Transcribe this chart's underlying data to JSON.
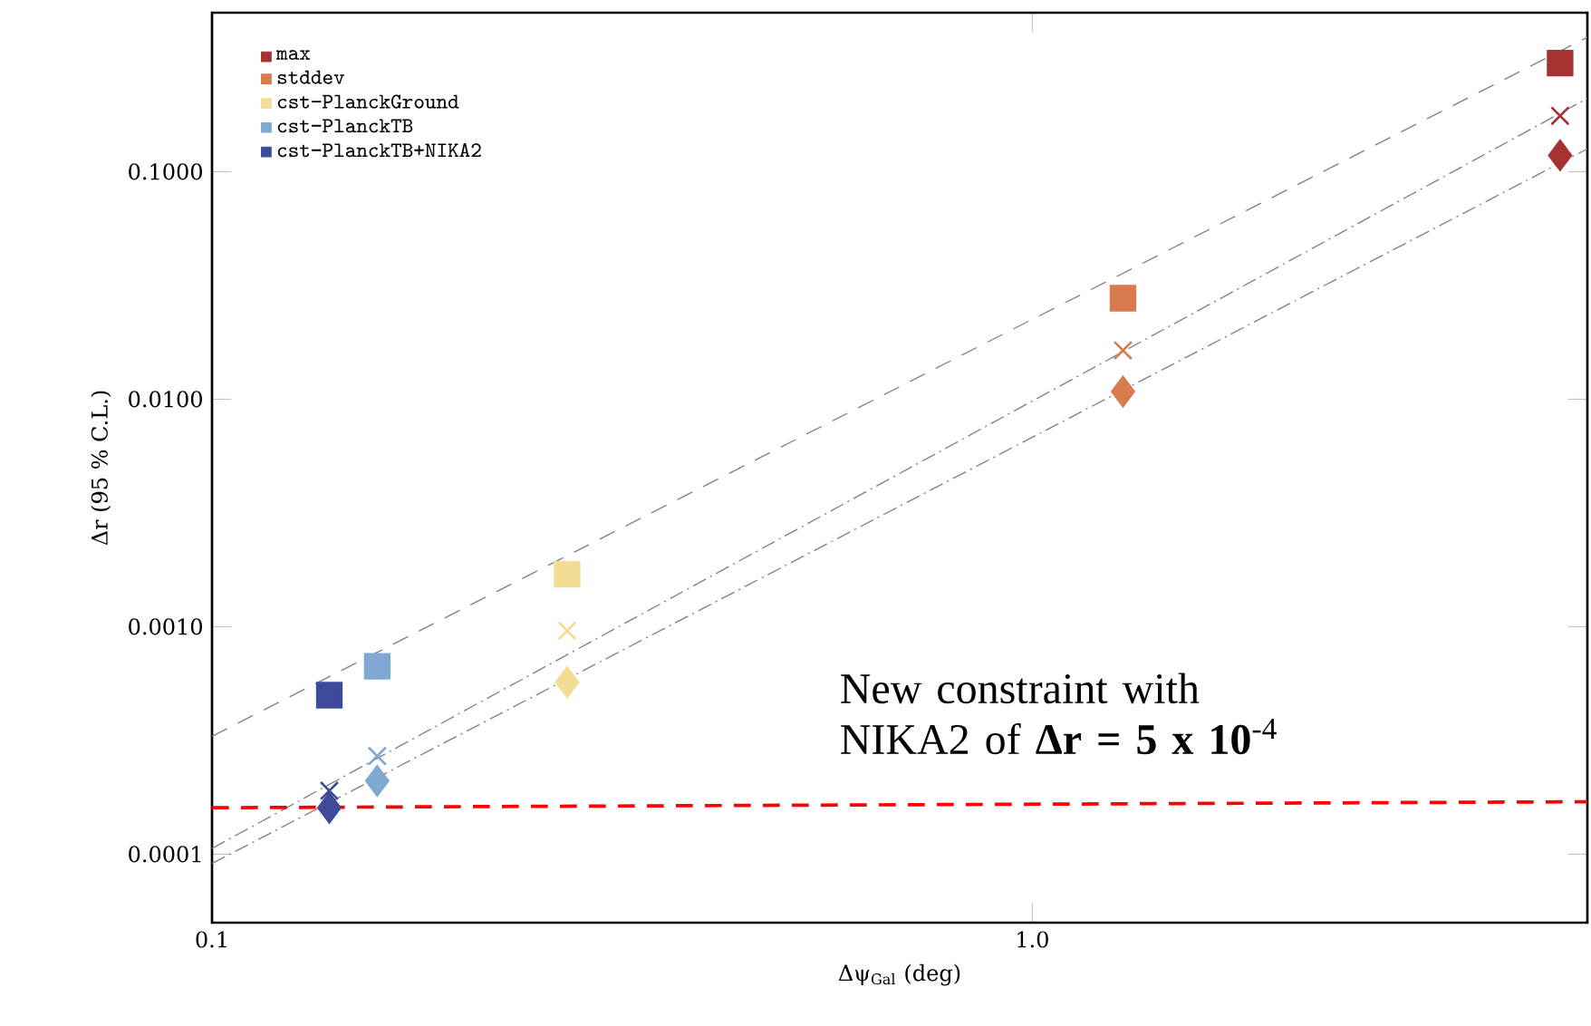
{
  "chart_data": {
    "type": "scatter",
    "xlabel": "Δψ$_{Gal}$ (deg)",
    "ylabel": "Δr (95 % C.L.)",
    "log": "xy",
    "xlim": [
      0.1,
      4.75
    ],
    "ylim": [
      5e-05,
      0.5
    ],
    "xticks": [
      {
        "value": 0.1,
        "label": "0.1"
      },
      {
        "value": 1,
        "label": "1.0"
      }
    ],
    "yticks": [
      {
        "value": 0.0001,
        "label": "0.0001"
      },
      {
        "value": 0.001,
        "label": "0.0010"
      },
      {
        "value": 0.01,
        "label": "0.0100"
      },
      {
        "value": 0.1,
        "label": "0.1000"
      }
    ],
    "legend": "top left",
    "annotations": [
      "New constraint with NIKA2 of **Δr = 5 x 10**$^{-4}$"
    ],
    "series": [
      {
        "name": "max",
        "type": "scatter",
        "marker": "square",
        "color": "#a83232",
        "x": [
          4.4
        ],
        "values": [
          0.3
        ]
      },
      {
        "name": "stddev",
        "type": "scatter",
        "marker": "square",
        "color": "#d97b4f",
        "x": [
          1.29
        ],
        "values": [
          0.0278
        ]
      },
      {
        "name": "cst−PlanckGround",
        "type": "scatter",
        "marker": "square",
        "color": "#f3dd95",
        "x": [
          0.271
        ],
        "values": [
          0.0017
        ]
      },
      {
        "name": "cst−PlanckTB",
        "type": "scatter",
        "marker": "square",
        "color": "#7fa8d2",
        "x": [
          0.159
        ],
        "values": [
          0.00067
        ]
      },
      {
        "name": "cst−PlanckTB+NIKA2",
        "type": "scatter",
        "marker": "square",
        "color": "#3d4b9a",
        "x": [
          0.139
        ],
        "values": [
          0.0005
        ]
      },
      {
        "type": "scatter",
        "marker": "cross",
        "color": "#a83232",
        "x": [
          4.4
        ],
        "values": [
          0.176
        ]
      },
      {
        "type": "scatter",
        "marker": "cross",
        "color": "#d97b4f",
        "x": [
          1.29
        ],
        "values": [
          0.0164
        ]
      },
      {
        "type": "scatter",
        "marker": "cross",
        "color": "#f3dd95",
        "x": [
          0.271
        ],
        "values": [
          0.00096
        ]
      },
      {
        "type": "scatter",
        "marker": "cross",
        "color": "#7fa8d2",
        "x": [
          0.159
        ],
        "values": [
          0.00027
        ]
      },
      {
        "type": "scatter",
        "marker": "cross",
        "color": "#3d4b9a",
        "x": [
          0.139
        ],
        "values": [
          0.00019
        ]
      },
      {
        "type": "scatter",
        "marker": "diamond",
        "color": "#a83232",
        "x": [
          4.4
        ],
        "values": [
          0.118
        ]
      },
      {
        "type": "scatter",
        "marker": "diamond",
        "color": "#d97b4f",
        "x": [
          1.29
        ],
        "values": [
          0.0108
        ]
      },
      {
        "type": "scatter",
        "marker": "diamond",
        "color": "#f3dd95",
        "x": [
          0.271
        ],
        "values": [
          0.00057
        ]
      },
      {
        "type": "scatter",
        "marker": "diamond",
        "color": "#7fa8d2",
        "x": [
          0.159
        ],
        "values": [
          0.00021
        ]
      },
      {
        "type": "scatter",
        "marker": "diamond",
        "color": "#3d4b9a",
        "x": [
          0.139
        ],
        "values": [
          0.00016
        ]
      },
      {
        "type": "line",
        "marker": "none",
        "line_style": "dashed",
        "color": "#808080",
        "x": [
          0.1,
          4.75
        ],
        "values": [
          0.00033,
          0.39
        ]
      },
      {
        "type": "line",
        "marker": "none",
        "line_style": "dotted",
        "color": "#808080",
        "x": [
          0.1,
          4.75
        ],
        "values": [
          0.000106,
          0.21
        ]
      },
      {
        "type": "line",
        "marker": "none",
        "line_style": "dotted",
        "color": "#808080",
        "x": [
          0.1,
          4.75
        ],
        "values": [
          9.1e-05,
          0.126
        ]
      },
      {
        "type": "line",
        "marker": "none",
        "line_style": "dashed",
        "color": "#ff0000",
        "x": [
          0.1,
          4.75
        ],
        "values": [
          0.00016,
          0.00017
        ]
      }
    ]
  }
}
